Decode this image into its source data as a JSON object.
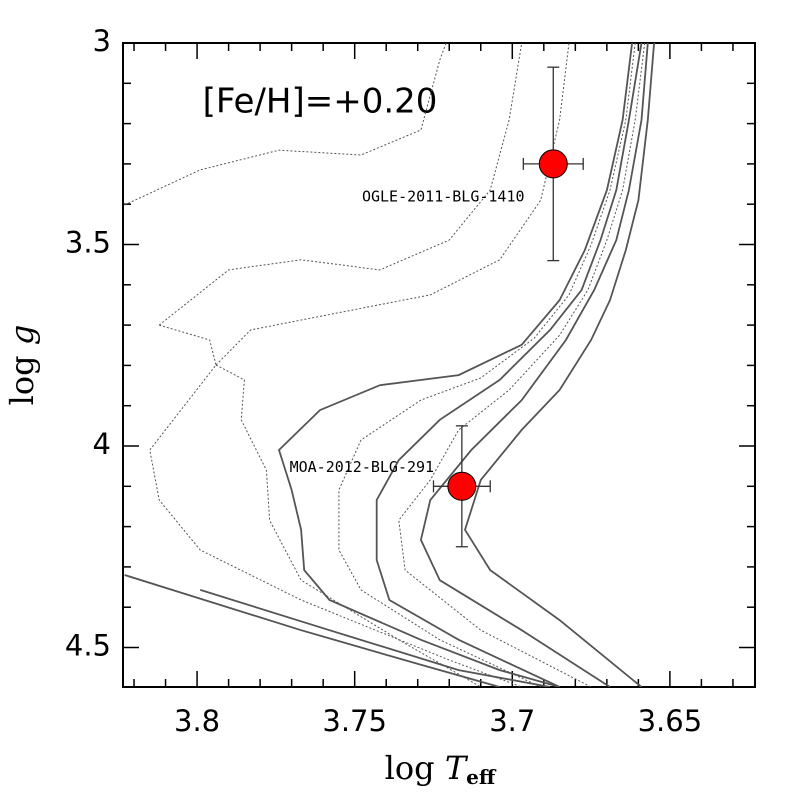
{
  "chart_data": {
    "type": "line",
    "annotation": "[Fe/H]=+0.20",
    "xlabel": {
      "text": "log ",
      "var": "T",
      "sub": "eff"
    },
    "ylabel": {
      "text": "log ",
      "var": "g"
    },
    "xlim": [
      3.8235,
      3.623
    ],
    "ylim": [
      3,
      4.598
    ],
    "xticks": [
      3.8,
      3.75,
      3.7,
      3.65
    ],
    "yticks": [
      3,
      3.5,
      4,
      4.5
    ],
    "xminorticks": [
      3.82,
      3.81,
      3.79,
      3.78,
      3.77,
      3.76,
      3.74,
      3.73,
      3.72,
      3.71,
      3.69,
      3.68,
      3.67,
      3.66,
      3.64,
      3.63
    ],
    "yminorticks": [
      3.1,
      3.2,
      3.3,
      3.4,
      3.6,
      3.7,
      3.8,
      3.9,
      4.1,
      4.2,
      4.3,
      4.4
    ],
    "line_color": "#555555",
    "series": [
      {
        "style": "solid",
        "x": [
          3.662,
          3.665,
          3.67,
          3.677,
          3.685,
          3.697,
          3.717,
          3.742,
          3.761,
          3.774,
          3.77,
          3.767,
          3.766,
          3.758,
          3.729,
          3.704,
          3.685
        ],
        "y": [
          3.0,
          3.191,
          3.365,
          3.514,
          3.638,
          3.749,
          3.824,
          3.849,
          3.911,
          4.01,
          4.109,
          4.208,
          4.308,
          4.382,
          4.481,
          4.556,
          4.598
        ]
      },
      {
        "style": "solid",
        "x": [
          3.659,
          3.663,
          3.667,
          3.672,
          3.678,
          3.688,
          3.704,
          3.723,
          3.736,
          3.743,
          3.743,
          3.739,
          3.717,
          3.685
        ],
        "y": [
          3.0,
          3.191,
          3.365,
          3.489,
          3.613,
          3.712,
          3.836,
          3.935,
          4.035,
          4.134,
          4.283,
          4.382,
          4.481,
          4.598
        ]
      },
      {
        "style": "solid",
        "x": [
          3.657,
          3.659,
          3.663,
          3.667,
          3.674,
          3.683,
          3.697,
          3.713,
          3.726,
          3.729,
          3.723,
          3.697,
          3.669
        ],
        "y": [
          3.0,
          3.191,
          3.365,
          3.489,
          3.613,
          3.737,
          3.886,
          4.01,
          4.134,
          4.233,
          4.333,
          4.457,
          4.598
        ]
      },
      {
        "style": "solid",
        "x": [
          3.655,
          3.657,
          3.66,
          3.664,
          3.669,
          3.675,
          3.685,
          3.697,
          3.71,
          3.715,
          3.707,
          3.685,
          3.659
        ],
        "y": [
          3.0,
          3.191,
          3.39,
          3.514,
          3.638,
          3.737,
          3.861,
          3.96,
          4.084,
          4.208,
          4.308,
          4.432,
          4.598
        ]
      },
      {
        "style": "solid",
        "x": [
          3.823,
          3.767,
          3.729,
          3.704
        ],
        "y": [
          4.32,
          4.457,
          4.543,
          4.598
        ]
      },
      {
        "style": "solid",
        "x": [
          3.799,
          3.758,
          3.717,
          3.688
        ],
        "y": [
          4.357,
          4.457,
          4.556,
          4.598
        ]
      },
      {
        "style": "dotted",
        "x": [
          3.823,
          3.799,
          3.774,
          3.748,
          3.729,
          3.723,
          3.721
        ],
        "y": [
          3.402,
          3.315,
          3.266,
          3.278,
          3.216,
          3.042,
          3.0
        ]
      },
      {
        "style": "dotted",
        "x": [
          3.812,
          3.79,
          3.767,
          3.742,
          3.72,
          3.707,
          3.701,
          3.697
        ],
        "y": [
          3.7,
          3.563,
          3.538,
          3.563,
          3.489,
          3.365,
          3.191,
          3.0
        ]
      },
      {
        "style": "dotted",
        "x": [
          3.794,
          3.783,
          3.751,
          3.726,
          3.704,
          3.691,
          3.685,
          3.682
        ],
        "y": [
          3.799,
          3.712,
          3.663,
          3.625,
          3.538,
          3.39,
          3.191,
          3.0
        ]
      },
      {
        "style": "dotted",
        "x": [
          3.812,
          3.796,
          3.794,
          3.815,
          3.812,
          3.799,
          3.767,
          3.72,
          3.697
        ],
        "y": [
          3.7,
          3.737,
          3.799,
          4.01,
          4.134,
          4.258,
          4.382,
          4.531,
          4.598
        ]
      },
      {
        "style": "dotted",
        "x": [
          3.794,
          3.785,
          3.786,
          3.778,
          3.777,
          3.767,
          3.736,
          3.71
        ],
        "y": [
          3.799,
          3.836,
          3.935,
          4.06,
          4.184,
          4.333,
          4.481,
          4.598
        ]
      },
      {
        "style": "dotted",
        "x": [
          3.661,
          3.664,
          3.669,
          3.675,
          3.682,
          3.693,
          3.71,
          3.729,
          3.748,
          3.755,
          3.755,
          3.748,
          3.723,
          3.691
        ],
        "y": [
          3.0,
          3.191,
          3.365,
          3.501,
          3.625,
          3.732,
          3.831,
          3.886,
          3.985,
          4.109,
          4.258,
          4.357,
          4.481,
          4.598
        ]
      },
      {
        "style": "dotted",
        "x": [
          3.658,
          3.661,
          3.665,
          3.67,
          3.676,
          3.685,
          3.701,
          3.717,
          3.726,
          3.736,
          3.734,
          3.71,
          3.675
        ],
        "y": [
          3.0,
          3.191,
          3.365,
          3.489,
          3.613,
          3.725,
          3.861,
          3.96,
          4.084,
          4.184,
          4.308,
          4.457,
          4.598
        ]
      }
    ],
    "points": [
      {
        "label": "OGLE-2011-BLG-1410",
        "x": 3.687,
        "y": 3.3,
        "xerr": 0.0095,
        "yerr": 0.24,
        "color": "#ff0000"
      },
      {
        "label": "MOA-2012-BLG-291",
        "x": 3.716,
        "y": 4.1,
        "xerr": 0.009,
        "yerr": 0.15,
        "color": "#ff0000"
      }
    ]
  }
}
